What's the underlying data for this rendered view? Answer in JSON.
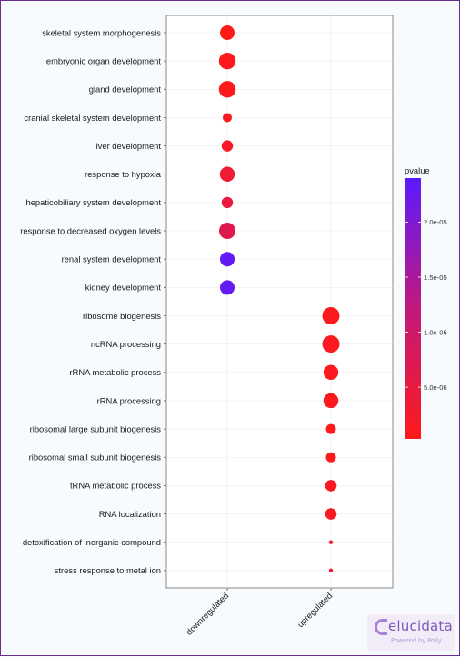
{
  "chart_data": {
    "type": "scatter",
    "x_categories": [
      "downregulated",
      "upregulated"
    ],
    "y_categories": [
      "skeletal system morphogenesis",
      "embryonic organ development",
      "gland development",
      "cranial skeletal system development",
      "liver development",
      "response to hypoxia",
      "hepaticobiliary system development",
      "response to decreased oxygen levels",
      "renal system development",
      "kidney development",
      "ribosome biogenesis",
      "ncRNA processing",
      "rRNA metabolic process",
      "rRNA processing",
      "ribosomal large subunit biogenesis",
      "ribosomal small subunit biogenesis",
      "tRNA metabolic process",
      "RNA localization",
      "detoxification of inorganic compound",
      "stress response to metal ion"
    ],
    "points": [
      {
        "x": "downregulated",
        "y": "skeletal system morphogenesis",
        "pvalue": 3e-07,
        "relative_size": 0.8
      },
      {
        "x": "downregulated",
        "y": "embryonic organ development",
        "pvalue": 5e-07,
        "relative_size": 0.92
      },
      {
        "x": "downregulated",
        "y": "gland development",
        "pvalue": 6e-07,
        "relative_size": 0.92
      },
      {
        "x": "downregulated",
        "y": "cranial skeletal system development",
        "pvalue": 1e-06,
        "relative_size": 0.5
      },
      {
        "x": "downregulated",
        "y": "liver development",
        "pvalue": 2e-06,
        "relative_size": 0.62
      },
      {
        "x": "downregulated",
        "y": "response to hypoxia",
        "pvalue": 3.5e-06,
        "relative_size": 0.82
      },
      {
        "x": "downregulated",
        "y": "hepaticobiliary system development",
        "pvalue": 4.5e-06,
        "relative_size": 0.62
      },
      {
        "x": "downregulated",
        "y": "response to decreased oxygen levels",
        "pvalue": 6.5e-06,
        "relative_size": 0.9
      },
      {
        "x": "downregulated",
        "y": "renal system development",
        "pvalue": 2.3e-05,
        "relative_size": 0.8
      },
      {
        "x": "downregulated",
        "y": "kidney development",
        "pvalue": 2.3e-05,
        "relative_size": 0.8
      },
      {
        "x": "upregulated",
        "y": "ribosome biogenesis",
        "pvalue": 8e-07,
        "relative_size": 0.95
      },
      {
        "x": "upregulated",
        "y": "ncRNA processing",
        "pvalue": 1e-06,
        "relative_size": 0.95
      },
      {
        "x": "upregulated",
        "y": "rRNA metabolic process",
        "pvalue": 8e-07,
        "relative_size": 0.82
      },
      {
        "x": "upregulated",
        "y": "rRNA processing",
        "pvalue": 8e-07,
        "relative_size": 0.82
      },
      {
        "x": "upregulated",
        "y": "ribosomal large subunit biogenesis",
        "pvalue": 5e-07,
        "relative_size": 0.55
      },
      {
        "x": "upregulated",
        "y": "ribosomal small subunit biogenesis",
        "pvalue": 6e-07,
        "relative_size": 0.55
      },
      {
        "x": "upregulated",
        "y": "tRNA metabolic process",
        "pvalue": 1.2e-06,
        "relative_size": 0.63
      },
      {
        "x": "upregulated",
        "y": "RNA localization",
        "pvalue": 1.5e-06,
        "relative_size": 0.63
      },
      {
        "x": "upregulated",
        "y": "detoxification of inorganic compound",
        "pvalue": 2e-06,
        "relative_size": 0.22
      },
      {
        "x": "upregulated",
        "y": "stress response to metal ion",
        "pvalue": 2.5e-06,
        "relative_size": 0.22
      }
    ],
    "color_legend": {
      "title": "pvalue",
      "min": 3e-07,
      "max": 2.4e-05,
      "ticks": [
        {
          "value": 5e-06,
          "label": "5.0e-06"
        },
        {
          "value": 1e-05,
          "label": "1.0e-05"
        },
        {
          "value": 1.5e-05,
          "label": "1.5e-05"
        },
        {
          "value": 2e-05,
          "label": "2.0e-05"
        }
      ],
      "low_color": "#ff1a1a",
      "high_color": "#5b1aff"
    },
    "grid": true,
    "legend_position": "right"
  },
  "branding": {
    "name": "elucidata",
    "tagline": "Powered by Polly",
    "color": "#7e57b8"
  }
}
